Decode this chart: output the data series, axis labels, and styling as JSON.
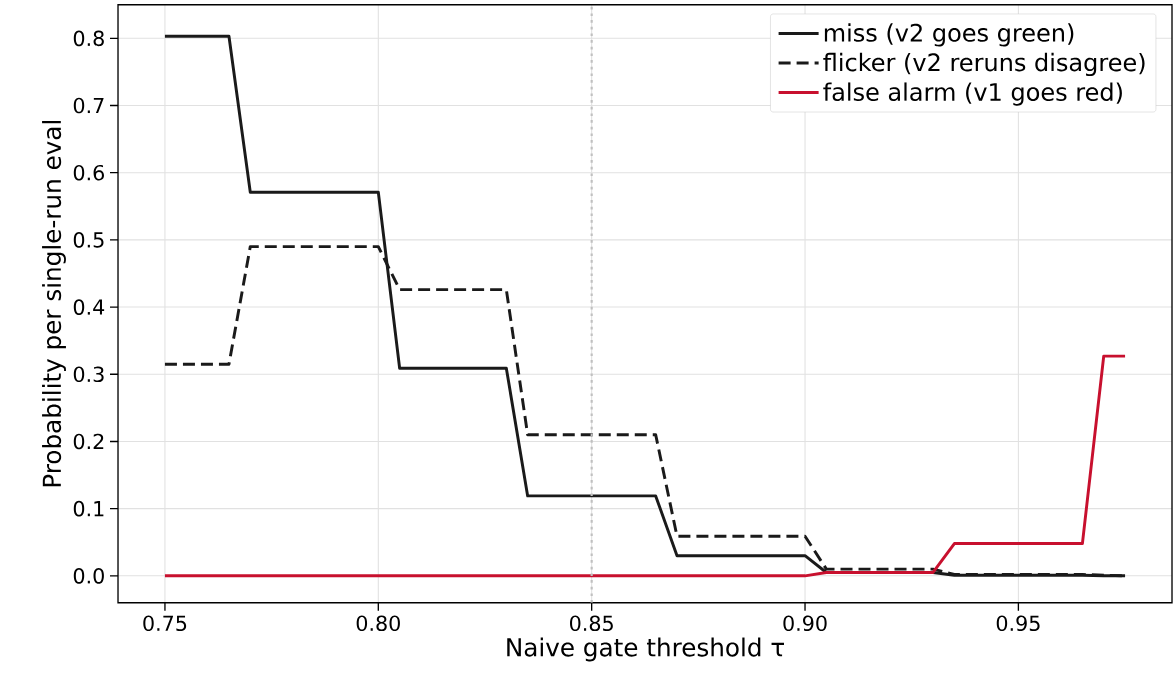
{
  "chart_data": {
    "type": "line",
    "xlabel": "Naive gate threshold τ",
    "ylabel": "Probability per single-run eval",
    "x": [
      0.75,
      0.755,
      0.76,
      0.765,
      0.77,
      0.775,
      0.78,
      0.785,
      0.79,
      0.795,
      0.8,
      0.805,
      0.81,
      0.815,
      0.82,
      0.825,
      0.83,
      0.835,
      0.84,
      0.845,
      0.85,
      0.855,
      0.86,
      0.865,
      0.87,
      0.875,
      0.88,
      0.885,
      0.89,
      0.895,
      0.9,
      0.905,
      0.91,
      0.915,
      0.92,
      0.925,
      0.93,
      0.935,
      0.94,
      0.945,
      0.95,
      0.955,
      0.96,
      0.965,
      0.97,
      0.975
    ],
    "series": [
      {
        "name": "miss (v2 goes green)",
        "color": "#1a1a1a",
        "line_style": "solid",
        "values": [
          0.803,
          0.803,
          0.803,
          0.803,
          0.571,
          0.571,
          0.571,
          0.571,
          0.571,
          0.571,
          0.571,
          0.309,
          0.309,
          0.309,
          0.309,
          0.309,
          0.309,
          0.119,
          0.119,
          0.119,
          0.119,
          0.119,
          0.119,
          0.119,
          0.03,
          0.03,
          0.03,
          0.03,
          0.03,
          0.03,
          0.03,
          0.005,
          0.005,
          0.005,
          0.005,
          0.005,
          0.005,
          0.001,
          0.001,
          0.001,
          0.001,
          0.001,
          0.001,
          0.001,
          0,
          0
        ]
      },
      {
        "name": "flicker (v2 reruns disagree)",
        "color": "#1a1a1a",
        "line_style": "dashed",
        "values": [
          0.315,
          0.315,
          0.315,
          0.315,
          0.49,
          0.49,
          0.49,
          0.49,
          0.49,
          0.49,
          0.49,
          0.426,
          0.426,
          0.426,
          0.426,
          0.426,
          0.426,
          0.21,
          0.21,
          0.21,
          0.21,
          0.21,
          0.21,
          0.21,
          0.059,
          0.059,
          0.059,
          0.059,
          0.059,
          0.059,
          0.059,
          0.01,
          0.01,
          0.01,
          0.01,
          0.01,
          0.01,
          0.002,
          0.002,
          0.002,
          0.002,
          0.002,
          0.002,
          0.002,
          0.001,
          0
        ]
      },
      {
        "name": "false alarm (v1 goes red)",
        "color": "#c8102e",
        "line_style": "solid",
        "values": [
          0,
          0,
          0,
          0,
          0,
          0,
          0,
          0,
          0,
          0,
          0,
          0,
          0,
          0,
          0,
          0,
          0,
          0,
          0,
          0,
          0,
          0,
          0,
          0,
          0,
          0,
          0,
          0,
          0,
          0,
          0,
          0.005,
          0.005,
          0.005,
          0.005,
          0.005,
          0.005,
          0.048,
          0.048,
          0.048,
          0.048,
          0.048,
          0.048,
          0.048,
          0.327,
          0.327
        ]
      }
    ],
    "xlim": [
      0.739,
      0.986
    ],
    "ylim": [
      -0.04,
      0.85
    ],
    "xticks": [
      {
        "value": 0.75,
        "label": "0.75"
      },
      {
        "value": 0.8,
        "label": "0.80"
      },
      {
        "value": 0.85,
        "label": "0.85"
      },
      {
        "value": 0.9,
        "label": "0.90"
      },
      {
        "value": 0.95,
        "label": "0.95"
      }
    ],
    "yticks": [
      {
        "value": 0,
        "label": "0.0"
      },
      {
        "value": 0.1,
        "label": "0.1"
      },
      {
        "value": 0.2,
        "label": "0.2"
      },
      {
        "value": 0.3,
        "label": "0.3"
      },
      {
        "value": 0.4,
        "label": "0.4"
      },
      {
        "value": 0.5,
        "label": "0.5"
      },
      {
        "value": 0.6,
        "label": "0.6"
      },
      {
        "value": 0.7,
        "label": "0.7"
      },
      {
        "value": 0.8,
        "label": "0.8"
      }
    ],
    "ref_lines": [
      {
        "axis": "x",
        "value": 0.85,
        "color": "#c0c0c0",
        "line_style": "dotted"
      }
    ],
    "grid": true,
    "legend": "top right"
  }
}
